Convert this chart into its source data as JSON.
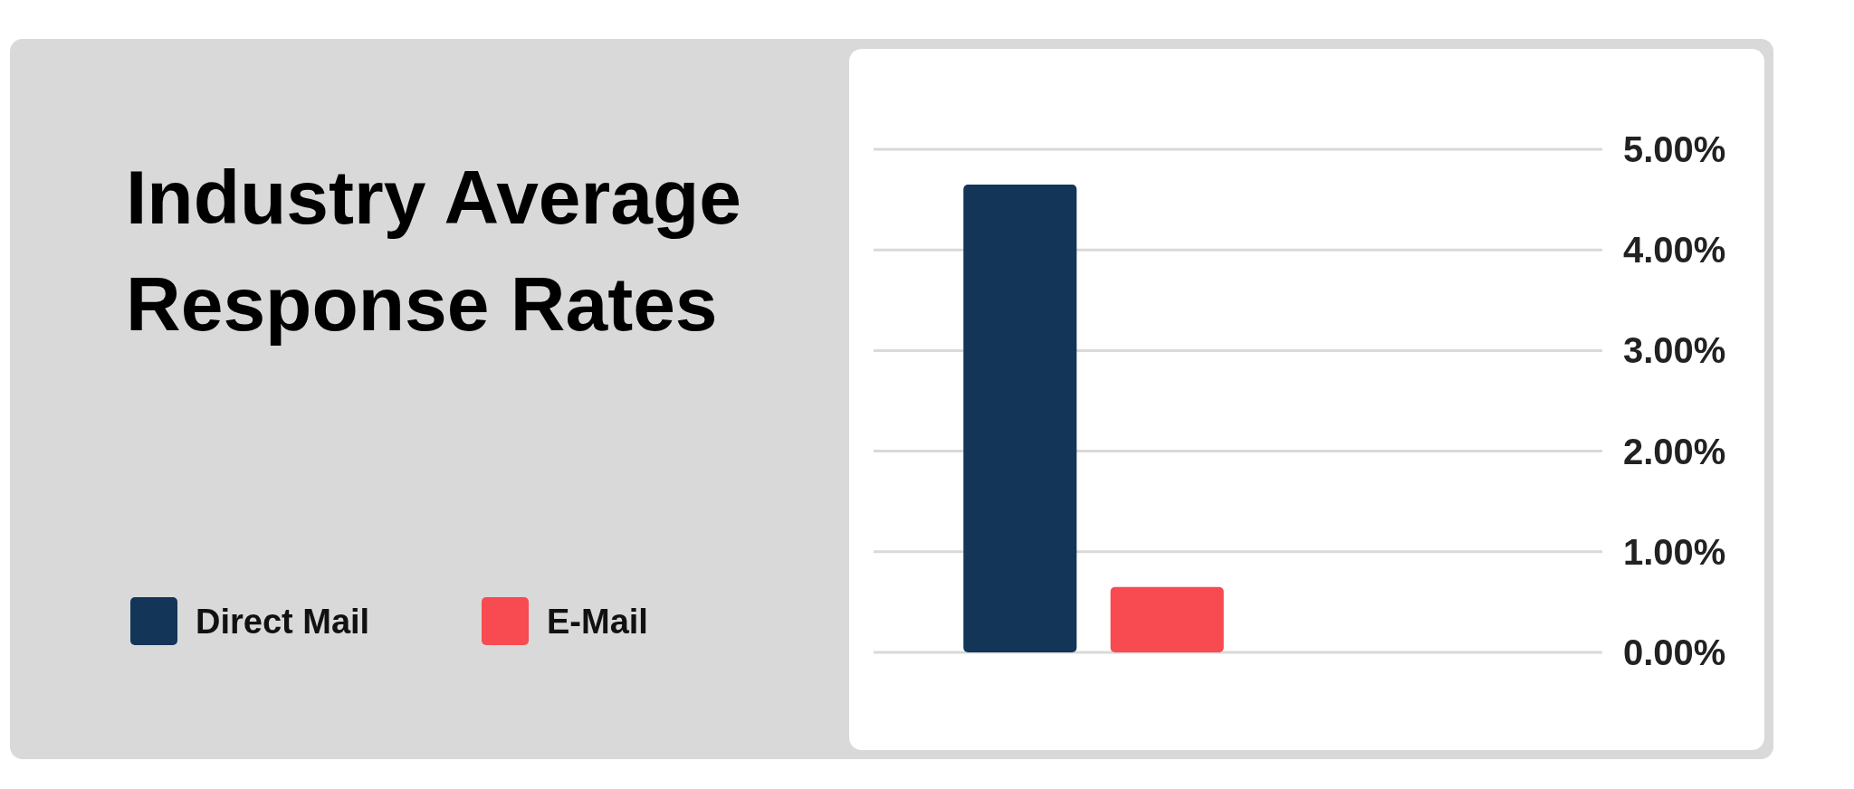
{
  "chart_data": {
    "type": "bar",
    "title": "Industry Average Response Rates",
    "categories": [
      null
    ],
    "series": [
      {
        "name": "Direct Mail",
        "color": "#133558",
        "values": [
          4.65
        ]
      },
      {
        "name": "E-Mail",
        "color": "#f74a51",
        "values": [
          0.65
        ]
      }
    ],
    "ylim": [
      0,
      5
    ],
    "yticks": [
      {
        "value": 0,
        "label": "0.00%"
      },
      {
        "value": 1,
        "label": "1.00%"
      },
      {
        "value": 2,
        "label": "2.00%"
      },
      {
        "value": 3,
        "label": "3.00%"
      },
      {
        "value": 4,
        "label": "4.00%"
      },
      {
        "value": 5,
        "label": "5.00%"
      }
    ],
    "grid": "y",
    "legend": "left"
  }
}
